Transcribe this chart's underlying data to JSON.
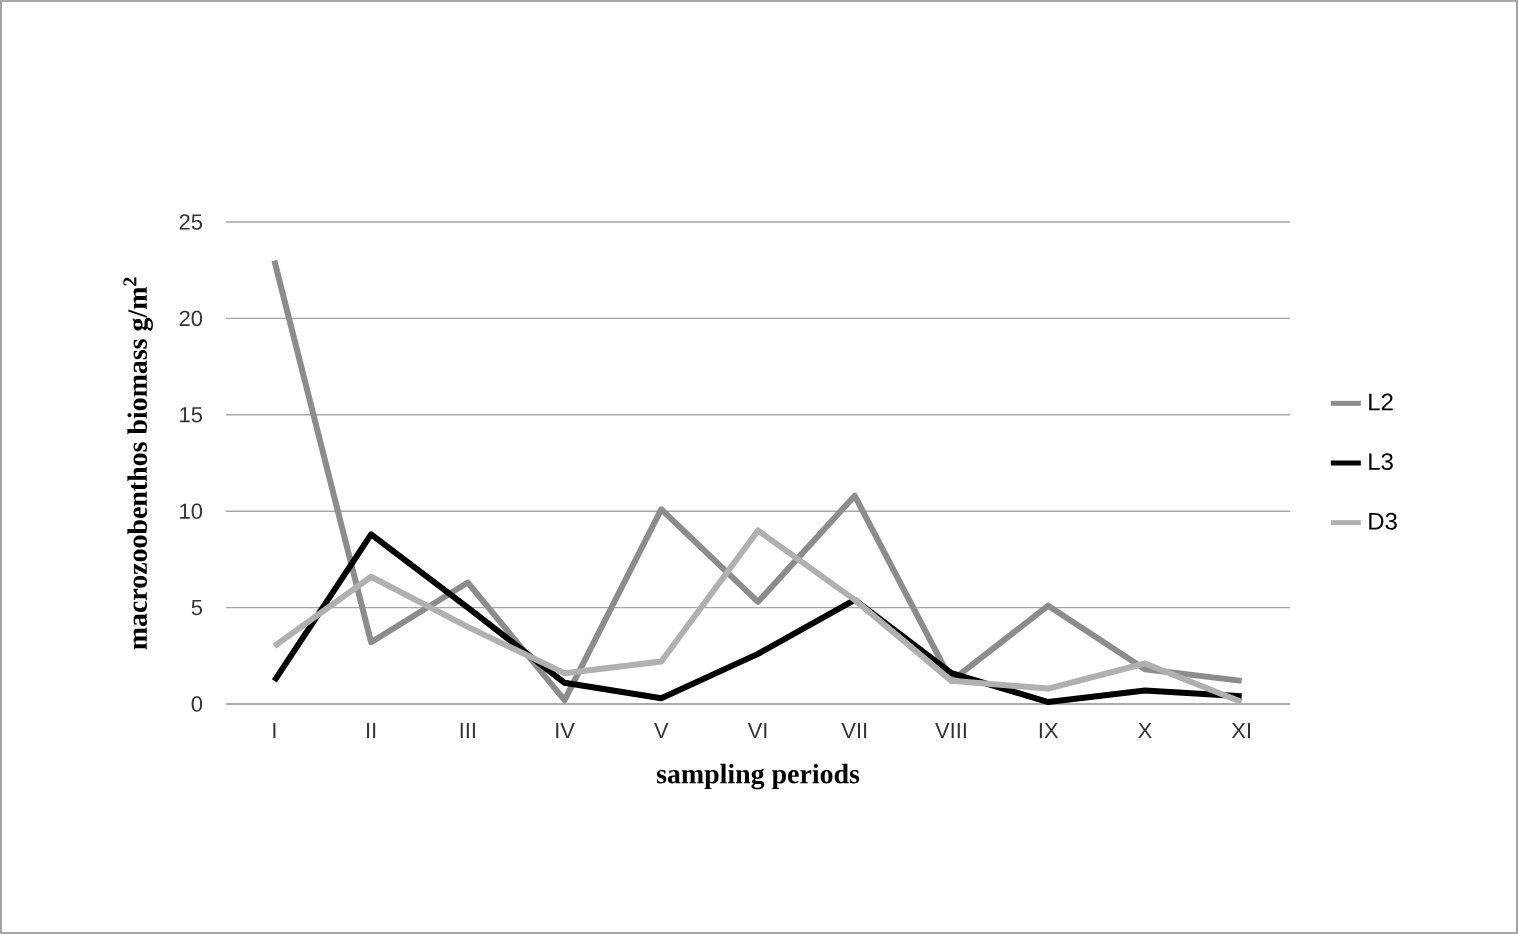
{
  "chart_data": {
    "type": "line",
    "xlabel": "sampling periods",
    "ylabel": "macrozoobenthos biomass g/m$^{2}$",
    "categories": [
      "I",
      "II",
      "III",
      "IV",
      "V",
      "VI",
      "VII",
      "VIII",
      "IX",
      "X",
      "XI"
    ],
    "series": [
      {
        "name": "L2",
        "color": "#8c8c8c",
        "values": [
          23,
          3.2,
          6.3,
          0.2,
          10.1,
          5.3,
          10.8,
          1.2,
          5.1,
          1.8,
          1.2
        ]
      },
      {
        "name": "L3",
        "color": "#000000",
        "values": [
          1.2,
          8.8,
          5.0,
          1.1,
          0.3,
          2.6,
          5.4,
          1.6,
          0.1,
          0.7,
          0.4
        ]
      },
      {
        "name": "D3",
        "color": "#b0b0b0",
        "values": [
          3.0,
          6.6,
          4.0,
          1.6,
          2.2,
          9.0,
          5.4,
          1.2,
          0.8,
          2.1,
          0.1
        ]
      }
    ],
    "ylim": [
      0,
      25
    ],
    "yticks": [
      0,
      5,
      10,
      15,
      20,
      25
    ],
    "grid": "y",
    "legend": "right",
    "marker": "none",
    "line_style": "solid"
  }
}
